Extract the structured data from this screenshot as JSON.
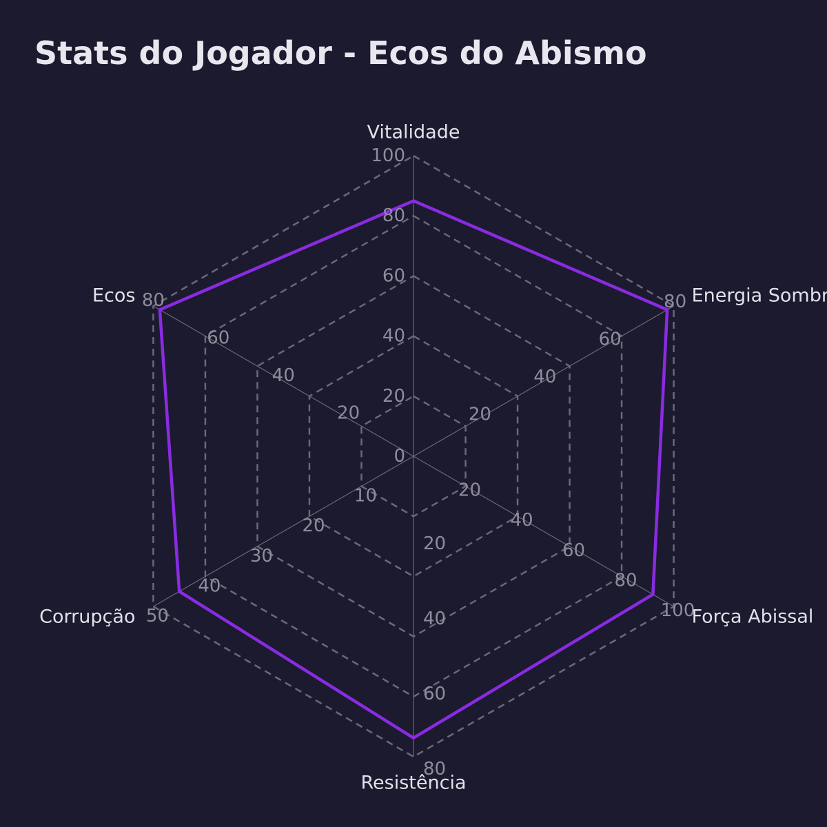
{
  "chart_data": {
    "type": "radar",
    "title": "Stats do Jogador - Ecos do Abismo",
    "axes": [
      {
        "label": "Vitalidade",
        "max": 100,
        "ticks": [
          0,
          20,
          40,
          60,
          80,
          100
        ],
        "value": 85
      },
      {
        "label": "Energia Sombria",
        "max": 80,
        "ticks": [
          20,
          40,
          60,
          80
        ],
        "value": 78
      },
      {
        "label": "Força Abissal",
        "max": 100,
        "ticks": [
          20,
          40,
          60,
          80,
          100
        ],
        "value": 92
      },
      {
        "label": "Resistência",
        "max": 80,
        "ticks": [
          20,
          40,
          60,
          80
        ],
        "value": 75
      },
      {
        "label": "Corrupção",
        "max": 50,
        "ticks": [
          10,
          20,
          30,
          40,
          50
        ],
        "value": 45
      },
      {
        "label": "Ecos",
        "max": 80,
        "ticks": [
          20,
          40,
          60,
          80
        ],
        "value": 78
      }
    ],
    "series": [
      {
        "color": "#8a2be2"
      }
    ],
    "grid": true,
    "grid_color": "#6b6878",
    "background": "#1b1a2e"
  }
}
